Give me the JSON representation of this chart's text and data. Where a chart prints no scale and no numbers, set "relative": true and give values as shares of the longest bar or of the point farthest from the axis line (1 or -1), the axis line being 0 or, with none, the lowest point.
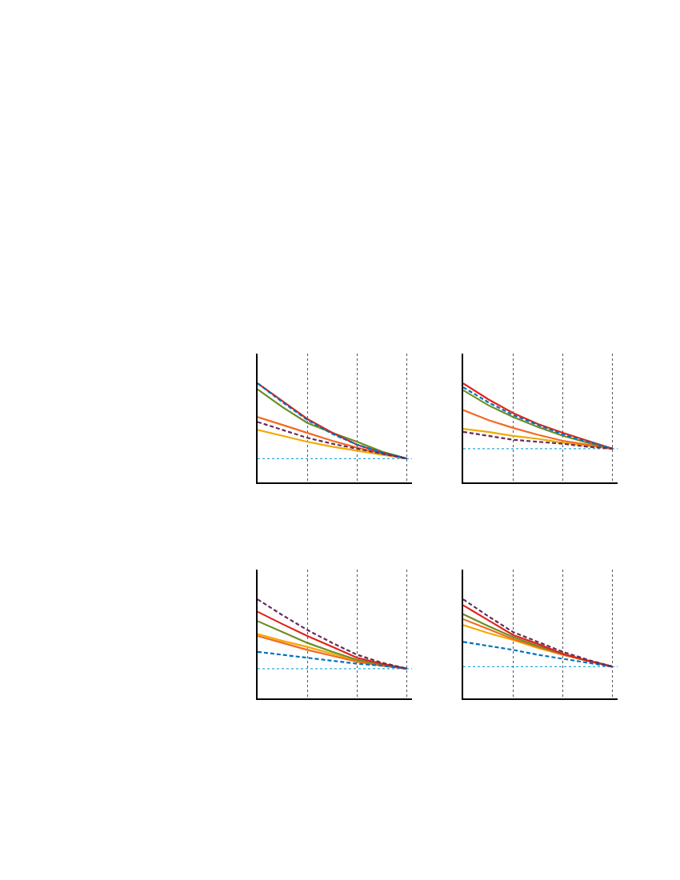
{
  "chart_data": [
    {
      "type": "line",
      "relative": true,
      "categories": [
        null,
        null,
        null,
        null,
        null,
        null,
        null
      ],
      "grid": "x",
      "ref_lines": [
        {
          "axis": "y",
          "value": 0.24,
          "color": "#29abe2",
          "line_style": "dotted"
        }
      ],
      "series": [
        {
          "color": "#f2a900",
          "values": [
            0.53,
            0.47,
            0.41,
            0.36,
            0.32,
            0.28,
            0.24
          ]
        },
        {
          "color": "#f26a21",
          "values": [
            0.66,
            0.58,
            0.5,
            0.42,
            0.35,
            0.29,
            0.24
          ]
        },
        {
          "color": "#6b8e23",
          "values": [
            0.94,
            0.76,
            0.6,
            0.5,
            0.41,
            0.31,
            0.24
          ]
        },
        {
          "color": "#e2231a",
          "values": [
            1,
            0.82,
            0.64,
            0.5,
            0.38,
            0.3,
            0.24
          ]
        },
        {
          "color": "#0071bc",
          "line_style": "dashed",
          "values": [
            1,
            0.81,
            0.63,
            0.49,
            0.38,
            0.3,
            0.24
          ]
        },
        {
          "color": "#662d5b",
          "line_style": "dashed",
          "values": [
            0.61,
            0.53,
            0.45,
            0.39,
            0.34,
            0.29,
            0.24
          ]
        }
      ]
    },
    {
      "type": "line",
      "relative": true,
      "categories": [
        null,
        null,
        null,
        null,
        null,
        null,
        null
      ],
      "grid": "x",
      "ref_lines": [
        {
          "axis": "y",
          "value": 0.34,
          "color": "#29abe2",
          "line_style": "dotted"
        }
      ],
      "series": [
        {
          "color": "#f2a900",
          "values": [
            0.54,
            0.51,
            0.47,
            0.44,
            0.4,
            0.37,
            0.34
          ]
        },
        {
          "color": "#f26a21",
          "values": [
            0.73,
            0.63,
            0.55,
            0.48,
            0.42,
            0.38,
            0.34
          ]
        },
        {
          "color": "#6b8e23",
          "values": [
            0.93,
            0.78,
            0.66,
            0.56,
            0.47,
            0.4,
            0.34
          ]
        },
        {
          "color": "#e2231a",
          "values": [
            1,
            0.84,
            0.7,
            0.59,
            0.5,
            0.42,
            0.34
          ]
        },
        {
          "color": "#0071bc",
          "line_style": "dashed",
          "values": [
            0.96,
            0.81,
            0.68,
            0.58,
            0.485,
            0.41,
            0.34
          ]
        },
        {
          "color": "#662d5b",
          "line_style": "dashed",
          "values": [
            0.51,
            0.47,
            0.43,
            0.41,
            0.39,
            0.36,
            0.34
          ]
        }
      ]
    },
    {
      "type": "line",
      "relative": true,
      "categories": [
        null,
        null,
        null,
        null,
        null,
        null,
        null
      ],
      "grid": "x",
      "ref_lines": [
        {
          "axis": "y",
          "value": 0.3,
          "color": "#29abe2",
          "line_style": "dotted"
        }
      ],
      "series": [
        {
          "color": "#f2a900",
          "values": [
            0.65,
            0.58,
            0.52,
            0.45,
            0.38,
            0.34,
            0.3
          ]
        },
        {
          "color": "#f26a21",
          "values": [
            0.63,
            0.56,
            0.49,
            0.43,
            0.37,
            0.33,
            0.3
          ]
        },
        {
          "color": "#6b8e23",
          "values": [
            0.78,
            0.67,
            0.56,
            0.47,
            0.39,
            0.34,
            0.3
          ]
        },
        {
          "color": "#e2231a",
          "values": [
            0.875,
            0.75,
            0.63,
            0.52,
            0.41,
            0.35,
            0.3
          ]
        },
        {
          "color": "#0071bc",
          "line_style": "dashed",
          "values": [
            0.47,
            0.44,
            0.41,
            0.38,
            0.35,
            0.33,
            0.3
          ]
        },
        {
          "color": "#662d5b",
          "line_style": "dashed",
          "values": [
            1,
            0.84,
            0.69,
            0.56,
            0.44,
            0.36,
            0.3
          ]
        }
      ]
    },
    {
      "type": "line",
      "relative": true,
      "categories": [
        null,
        null,
        null,
        null,
        null,
        null,
        null
      ],
      "grid": "x",
      "ref_lines": [
        {
          "axis": "y",
          "value": 0.32,
          "color": "#29abe2",
          "line_style": "dotted"
        }
      ],
      "series": [
        {
          "color": "#f2a900",
          "values": [
            0.74,
            0.66,
            0.59,
            0.51,
            0.44,
            0.38,
            0.32
          ]
        },
        {
          "color": "#f26a21",
          "values": [
            0.8,
            0.7,
            0.6,
            0.52,
            0.44,
            0.38,
            0.32
          ]
        },
        {
          "color": "#6b8e23",
          "values": [
            0.85,
            0.73,
            0.62,
            0.53,
            0.45,
            0.38,
            0.32
          ]
        },
        {
          "color": "#e2231a",
          "values": [
            0.94,
            0.79,
            0.64,
            0.55,
            0.45,
            0.38,
            0.32
          ]
        },
        {
          "color": "#0071bc",
          "line_style": "dashed",
          "values": [
            0.57,
            0.53,
            0.49,
            0.44,
            0.4,
            0.36,
            0.32
          ]
        },
        {
          "color": "#662d5b",
          "line_style": "dashed",
          "values": [
            1,
            0.83,
            0.67,
            0.57,
            0.47,
            0.39,
            0.32
          ]
        }
      ]
    }
  ]
}
